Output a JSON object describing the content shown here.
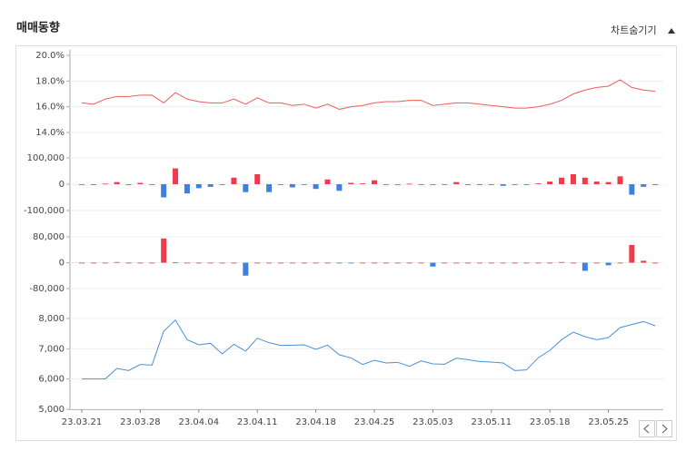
{
  "header": {
    "title": "매매동향",
    "toggle": "차트숨기기"
  },
  "chart_data": [
    {
      "type": "line",
      "color": "#f05a5a",
      "grid": true,
      "ylim": [
        14,
        20
      ],
      "yticks": [
        {
          "value": 20,
          "label": "20.0%"
        },
        {
          "value": 18,
          "label": "18.0%"
        },
        {
          "value": 16,
          "label": "16.0%"
        },
        {
          "value": 14,
          "label": "14.0%"
        }
      ],
      "values": [
        16.3,
        16.2,
        16.6,
        16.8,
        16.8,
        16.9,
        16.9,
        16.3,
        17.1,
        16.6,
        16.4,
        16.3,
        16.3,
        16.6,
        16.2,
        16.7,
        16.3,
        16.3,
        16.1,
        16.2,
        15.9,
        16.2,
        15.8,
        16.0,
        16.1,
        16.3,
        16.4,
        16.4,
        16.5,
        16.5,
        16.1,
        16.2,
        16.3,
        16.3,
        16.2,
        16.1,
        16.0,
        15.9,
        15.9,
        16.0,
        16.2,
        16.5,
        17.0,
        17.3,
        17.5,
        17.6,
        18.1,
        17.5,
        17.3,
        17.2
      ]
    },
    {
      "type": "bar",
      "colors": {
        "positive": "#ef3b4a",
        "negative": "#3b82e0"
      },
      "grid": true,
      "ylim": [
        -100000,
        100000
      ],
      "yticks": [
        {
          "value": 100000,
          "label": "100,000"
        },
        0,
        {
          "value": -100000,
          "label": "-100,000"
        }
      ],
      "values": [
        -2000,
        -3000,
        2000,
        8000,
        0,
        5000,
        0,
        -50000,
        60000,
        -35000,
        -15000,
        -10000,
        0,
        25000,
        -30000,
        38000,
        -30000,
        0,
        -12000,
        0,
        -18000,
        18000,
        -25000,
        5000,
        3000,
        15000,
        -2000,
        0,
        2000,
        0,
        0,
        0,
        8000,
        -3000,
        -3000,
        -3000,
        -6000,
        0,
        0,
        3000,
        10000,
        25000,
        38000,
        25000,
        10000,
        8000,
        30000,
        -40000,
        -10000,
        -3000
      ]
    },
    {
      "type": "bar",
      "colors": {
        "positive": "#ef3b4a",
        "negative": "#3b82e0"
      },
      "grid": true,
      "ylim": [
        -80000,
        80000
      ],
      "yticks": [
        {
          "value": 80000,
          "label": "80,000"
        },
        0,
        {
          "value": -80000,
          "label": "-80,000"
        }
      ],
      "values": [
        0,
        0,
        0,
        2000,
        0,
        0,
        0,
        75000,
        1000,
        0,
        0,
        0,
        0,
        0,
        -40000,
        0,
        0,
        0,
        0,
        0,
        0,
        0,
        -1000,
        -1000,
        0,
        0,
        0,
        0,
        0,
        0,
        -12000,
        0,
        0,
        0,
        0,
        0,
        0,
        0,
        0,
        0,
        0,
        2000,
        0,
        -25000,
        0,
        -8000,
        0,
        55000,
        6000,
        0
      ]
    },
    {
      "type": "line",
      "color": "#4a90d9",
      "grid": true,
      "ylim": [
        5000,
        8000
      ],
      "yticks": [
        {
          "value": 8000,
          "label": "8,000"
        },
        {
          "value": 7000,
          "label": "7,000"
        },
        {
          "value": 6000,
          "label": "6,000"
        },
        {
          "value": 5000,
          "label": "5,000"
        }
      ],
      "categories": [
        "23.03.21",
        null,
        null,
        null,
        null,
        "23.03.28",
        null,
        null,
        null,
        null,
        "23.04.04",
        null,
        null,
        null,
        null,
        "23.04.11",
        null,
        null,
        null,
        null,
        "23.04.18",
        null,
        null,
        null,
        null,
        "23.04.25",
        null,
        null,
        null,
        null,
        "23.05.03",
        null,
        null,
        null,
        null,
        "23.05.11",
        null,
        null,
        null,
        null,
        "23.05.18",
        null,
        null,
        null,
        null,
        "23.05.25",
        null,
        null,
        null,
        null
      ],
      "values": [
        6000,
        6000,
        6000,
        6350,
        6280,
        6480,
        6460,
        7580,
        7950,
        7300,
        7130,
        7180,
        6830,
        7150,
        6920,
        7350,
        7200,
        7110,
        7120,
        7130,
        6980,
        7120,
        6800,
        6700,
        6480,
        6620,
        6530,
        6550,
        6420,
        6600,
        6500,
        6490,
        6690,
        6640,
        6580,
        6560,
        6530,
        6280,
        6300,
        6700,
        6950,
        7300,
        7550,
        7400,
        7300,
        7370,
        7700,
        7800,
        7900,
        7760
      ]
    }
  ]
}
